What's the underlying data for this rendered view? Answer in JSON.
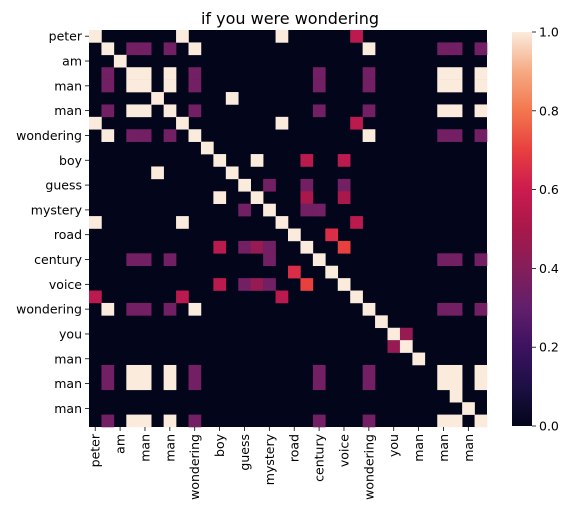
{
  "chart_data": {
    "type": "heatmap",
    "title": "if you were wondering",
    "xlabel": "",
    "ylabel": "",
    "x_tick_labels": [
      "peter",
      "am",
      "man",
      "man",
      "wondering",
      "boy",
      "guess",
      "mystery",
      "road",
      "century",
      "voice",
      "wondering",
      "you",
      "man",
      "man",
      "man"
    ],
    "y_tick_labels": [
      "peter",
      "am",
      "man",
      "man",
      "wondering",
      "boy",
      "guess",
      "mystery",
      "road",
      "century",
      "voice",
      "wondering",
      "you",
      "man",
      "man",
      "man"
    ],
    "tokens": [
      "peter",
      "(unlabeled)",
      "am",
      "(unlabeled)",
      "man",
      "(unlabeled)",
      "man",
      "(unlabeled)",
      "wondering",
      "(unlabeled)",
      "boy",
      "(unlabeled)",
      "guess",
      "(unlabeled)",
      "mystery",
      "(unlabeled)",
      "road",
      "(unlabeled)",
      "century",
      "(unlabeled)",
      "voice",
      "(unlabeled)",
      "wondering",
      "(unlabeled)",
      "you",
      "(unlabeled)",
      "man",
      "(unlabeled)",
      "man",
      "(unlabeled)",
      "man",
      "(unlabeled)"
    ],
    "colormap": "rocket",
    "vmin": 0.0,
    "vmax": 1.0,
    "colorbar_ticks": [
      "0.0",
      "0.2",
      "0.4",
      "0.6",
      "0.8",
      "1.0"
    ],
    "cells": [
      [
        0,
        0,
        1.0
      ],
      [
        0,
        7,
        1.0
      ],
      [
        0,
        15,
        1.0
      ],
      [
        0,
        21,
        0.55
      ],
      [
        1,
        1,
        1.0
      ],
      [
        1,
        3,
        0.35
      ],
      [
        1,
        4,
        0.35
      ],
      [
        1,
        6,
        0.35
      ],
      [
        1,
        8,
        1.0
      ],
      [
        1,
        22,
        1.0
      ],
      [
        1,
        28,
        0.35
      ],
      [
        1,
        29,
        0.35
      ],
      [
        1,
        31,
        0.35
      ],
      [
        2,
        2,
        1.0
      ],
      [
        3,
        1,
        0.35
      ],
      [
        3,
        3,
        1.0
      ],
      [
        3,
        4,
        1.0
      ],
      [
        3,
        6,
        1.0
      ],
      [
        3,
        8,
        0.35
      ],
      [
        3,
        18,
        0.35
      ],
      [
        3,
        22,
        0.35
      ],
      [
        3,
        28,
        1.0
      ],
      [
        3,
        29,
        1.0
      ],
      [
        3,
        31,
        1.0
      ],
      [
        4,
        1,
        0.35
      ],
      [
        4,
        3,
        1.0
      ],
      [
        4,
        4,
        1.0
      ],
      [
        4,
        6,
        1.0
      ],
      [
        4,
        8,
        0.35
      ],
      [
        4,
        18,
        0.35
      ],
      [
        4,
        22,
        0.35
      ],
      [
        4,
        28,
        1.0
      ],
      [
        4,
        29,
        1.0
      ],
      [
        4,
        31,
        1.0
      ],
      [
        5,
        5,
        1.0
      ],
      [
        5,
        11,
        1.0
      ],
      [
        6,
        1,
        0.35
      ],
      [
        6,
        3,
        1.0
      ],
      [
        6,
        4,
        1.0
      ],
      [
        6,
        6,
        1.0
      ],
      [
        6,
        8,
        0.35
      ],
      [
        6,
        18,
        0.35
      ],
      [
        6,
        22,
        0.35
      ],
      [
        6,
        28,
        1.0
      ],
      [
        6,
        29,
        1.0
      ],
      [
        6,
        31,
        1.0
      ],
      [
        7,
        0,
        1.0
      ],
      [
        7,
        7,
        1.0
      ],
      [
        7,
        15,
        1.0
      ],
      [
        7,
        21,
        0.55
      ],
      [
        8,
        1,
        1.0
      ],
      [
        8,
        3,
        0.35
      ],
      [
        8,
        4,
        0.35
      ],
      [
        8,
        6,
        0.35
      ],
      [
        8,
        8,
        1.0
      ],
      [
        8,
        22,
        1.0
      ],
      [
        8,
        28,
        0.35
      ],
      [
        8,
        29,
        0.35
      ],
      [
        8,
        31,
        0.35
      ],
      [
        9,
        9,
        1.0
      ],
      [
        10,
        10,
        1.0
      ],
      [
        10,
        13,
        1.0
      ],
      [
        10,
        17,
        0.55
      ],
      [
        10,
        20,
        0.55
      ],
      [
        11,
        5,
        1.0
      ],
      [
        11,
        11,
        1.0
      ],
      [
        12,
        12,
        1.0
      ],
      [
        12,
        14,
        0.35
      ],
      [
        12,
        17,
        0.35
      ],
      [
        12,
        20,
        0.35
      ],
      [
        13,
        10,
        1.0
      ],
      [
        13,
        13,
        1.0
      ],
      [
        13,
        17,
        0.5
      ],
      [
        13,
        20,
        0.5
      ],
      [
        14,
        12,
        0.35
      ],
      [
        14,
        14,
        1.0
      ],
      [
        14,
        17,
        0.35
      ],
      [
        14,
        18,
        0.35
      ],
      [
        15,
        0,
        1.0
      ],
      [
        15,
        7,
        1.0
      ],
      [
        15,
        15,
        1.0
      ],
      [
        15,
        21,
        0.55
      ],
      [
        16,
        16,
        1.0
      ],
      [
        16,
        19,
        0.65
      ],
      [
        17,
        10,
        0.55
      ],
      [
        17,
        12,
        0.35
      ],
      [
        17,
        13,
        0.45
      ],
      [
        17,
        14,
        0.35
      ],
      [
        17,
        17,
        1.0
      ],
      [
        17,
        20,
        0.7
      ],
      [
        18,
        3,
        0.35
      ],
      [
        18,
        4,
        0.35
      ],
      [
        18,
        6,
        0.35
      ],
      [
        18,
        14,
        0.35
      ],
      [
        18,
        18,
        1.0
      ],
      [
        18,
        28,
        0.35
      ],
      [
        18,
        29,
        0.35
      ],
      [
        18,
        31,
        0.35
      ],
      [
        19,
        16,
        0.65
      ],
      [
        19,
        19,
        1.0
      ],
      [
        20,
        10,
        0.55
      ],
      [
        20,
        12,
        0.35
      ],
      [
        20,
        13,
        0.45
      ],
      [
        20,
        14,
        0.35
      ],
      [
        20,
        17,
        0.7
      ],
      [
        20,
        20,
        1.0
      ],
      [
        21,
        0,
        0.55
      ],
      [
        21,
        7,
        0.55
      ],
      [
        21,
        15,
        0.55
      ],
      [
        21,
        21,
        1.0
      ],
      [
        22,
        1,
        1.0
      ],
      [
        22,
        3,
        0.35
      ],
      [
        22,
        4,
        0.35
      ],
      [
        22,
        6,
        0.35
      ],
      [
        22,
        8,
        1.0
      ],
      [
        22,
        22,
        1.0
      ],
      [
        22,
        28,
        0.35
      ],
      [
        22,
        29,
        0.35
      ],
      [
        22,
        31,
        0.35
      ],
      [
        23,
        23,
        1.0
      ],
      [
        24,
        24,
        1.0
      ],
      [
        24,
        25,
        0.45
      ],
      [
        25,
        24,
        0.45
      ],
      [
        25,
        25,
        1.0
      ],
      [
        26,
        26,
        1.0
      ],
      [
        27,
        1,
        0.35
      ],
      [
        27,
        3,
        1.0
      ],
      [
        27,
        4,
        1.0
      ],
      [
        27,
        6,
        1.0
      ],
      [
        27,
        8,
        0.35
      ],
      [
        27,
        18,
        0.35
      ],
      [
        27,
        22,
        0.35
      ],
      [
        27,
        28,
        1.0
      ],
      [
        27,
        29,
        1.0
      ],
      [
        27,
        31,
        1.0
      ],
      [
        28,
        1,
        0.35
      ],
      [
        28,
        3,
        1.0
      ],
      [
        28,
        4,
        1.0
      ],
      [
        28,
        6,
        1.0
      ],
      [
        28,
        8,
        0.35
      ],
      [
        28,
        18,
        0.35
      ],
      [
        28,
        22,
        0.35
      ],
      [
        28,
        28,
        1.0
      ],
      [
        28,
        29,
        1.0
      ],
      [
        28,
        31,
        1.0
      ],
      [
        29,
        29,
        1.0
      ],
      [
        30,
        30,
        1.0
      ],
      [
        31,
        1,
        0.35
      ],
      [
        31,
        3,
        1.0
      ],
      [
        31,
        4,
        1.0
      ],
      [
        31,
        6,
        1.0
      ],
      [
        31,
        8,
        0.35
      ],
      [
        31,
        18,
        0.35
      ],
      [
        31,
        22,
        0.35
      ],
      [
        31,
        28,
        1.0
      ],
      [
        31,
        29,
        1.0
      ],
      [
        31,
        31,
        1.0
      ]
    ]
  }
}
